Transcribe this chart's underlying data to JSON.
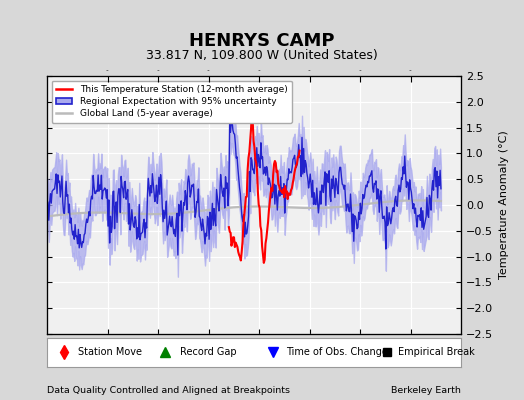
{
  "title": "HENRYS CAMP",
  "subtitle": "33.817 N, 109.800 W (United States)",
  "ylabel": "Temperature Anomaly (°C)",
  "footer_left": "Data Quality Controlled and Aligned at Breakpoints",
  "footer_right": "Berkeley Earth",
  "xlim": [
    1914,
    1955
  ],
  "ylim": [
    -2.5,
    2.5
  ],
  "xticks": [
    1920,
    1925,
    1930,
    1935,
    1940,
    1945,
    1950
  ],
  "yticks": [
    -2.5,
    -2,
    -1.5,
    -1,
    -0.5,
    0,
    0.5,
    1,
    1.5,
    2,
    2.5
  ],
  "bg_color": "#d8d8d8",
  "plot_bg_color": "#f0f0f0",
  "grid_color": "white",
  "regional_color": "#2222cc",
  "regional_fill_color": "#aaaaee",
  "station_color": "red",
  "global_color": "#bbbbbb",
  "title_fontsize": 13,
  "subtitle_fontsize": 9
}
